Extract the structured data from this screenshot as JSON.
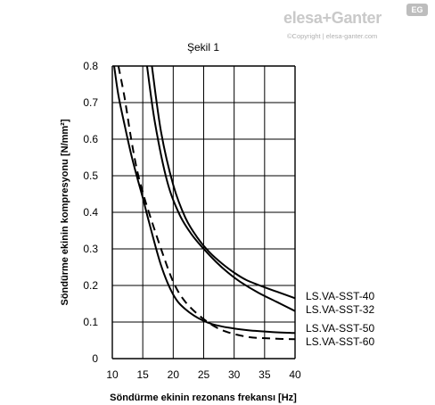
{
  "branding": {
    "logo_text": "elesa+Ganter",
    "badge": "EG",
    "copyright": "©Copyright | elesa-ganter.com"
  },
  "chart_data": {
    "type": "line",
    "title": "Şekil 1",
    "xlabel": "Söndürme ekinin rezonans frekansı [Hz]",
    "ylabel": "Söndürme ekinin kompresyonu [N/mm²]",
    "xlim": [
      10,
      40
    ],
    "ylim": [
      0,
      0.8
    ],
    "x_ticks": [
      "10",
      "15",
      "20",
      "25",
      "30",
      "35",
      "40"
    ],
    "y_ticks": [
      "0",
      "0.1",
      "0.2",
      "0.3",
      "0.4",
      "0.5",
      "0.6",
      "0.7",
      "0.8"
    ],
    "grid": true,
    "series": [
      {
        "name": "LS.VA-SST-40",
        "style": "solid",
        "x": [
          16.5,
          18,
          20,
          22,
          24,
          26,
          28,
          30,
          32,
          35,
          37,
          40
        ],
        "y": [
          0.8,
          0.62,
          0.475,
          0.385,
          0.33,
          0.29,
          0.26,
          0.235,
          0.215,
          0.195,
          0.183,
          0.165
        ]
      },
      {
        "name": "LS.VA-SST-32",
        "style": "solid",
        "x": [
          15.7,
          17,
          19,
          21,
          23,
          25,
          27,
          29,
          31,
          34,
          37,
          40
        ],
        "y": [
          0.8,
          0.645,
          0.485,
          0.395,
          0.34,
          0.3,
          0.265,
          0.235,
          0.21,
          0.18,
          0.155,
          0.13
        ]
      },
      {
        "name": "LS.VA-SST-50",
        "style": "solid",
        "x": [
          10.3,
          11,
          12,
          13,
          14,
          15,
          16,
          18,
          20,
          22,
          25,
          28,
          32,
          36,
          40
        ],
        "y": [
          0.8,
          0.72,
          0.64,
          0.565,
          0.5,
          0.44,
          0.375,
          0.255,
          0.175,
          0.135,
          0.103,
          0.088,
          0.078,
          0.073,
          0.07
        ]
      },
      {
        "name": "LS.VA-SST-60",
        "style": "dashed",
        "x": [
          11,
          12,
          13,
          14,
          15,
          16,
          18,
          20,
          22,
          25,
          28,
          32,
          36,
          40
        ],
        "y": [
          0.8,
          0.715,
          0.61,
          0.52,
          0.455,
          0.4,
          0.3,
          0.21,
          0.155,
          0.108,
          0.078,
          0.06,
          0.055,
          0.053
        ]
      }
    ]
  }
}
